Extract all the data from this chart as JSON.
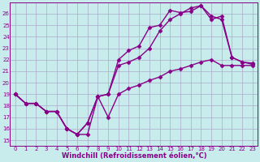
{
  "xlabel": "Windchill (Refroidissement éolien,°C)",
  "background_color": "#c8ecec",
  "grid_color": "#aaaacc",
  "line_color": "#880088",
  "xlim": [
    -0.5,
    23.5
  ],
  "ylim": [
    14.5,
    27
  ],
  "yticks": [
    15,
    16,
    17,
    18,
    19,
    20,
    21,
    22,
    23,
    24,
    25,
    26
  ],
  "xticks": [
    0,
    1,
    2,
    3,
    4,
    5,
    6,
    7,
    8,
    9,
    10,
    11,
    12,
    13,
    14,
    15,
    16,
    17,
    18,
    19,
    20,
    21,
    22,
    23
  ],
  "line1_x": [
    0,
    1,
    2,
    3,
    4,
    5,
    6,
    7,
    8,
    9,
    10,
    11,
    12,
    13,
    14,
    15,
    16,
    17,
    18,
    19,
    20,
    21,
    22,
    23
  ],
  "line1_y": [
    19.0,
    18.2,
    18.2,
    17.5,
    17.5,
    16.0,
    15.5,
    15.5,
    18.8,
    17.0,
    19.0,
    19.5,
    19.8,
    20.2,
    20.5,
    21.0,
    21.2,
    21.5,
    21.8,
    22.0,
    21.5,
    21.5,
    21.5,
    21.5
  ],
  "line2_x": [
    0,
    1,
    2,
    3,
    4,
    5,
    6,
    7,
    8,
    9,
    10,
    11,
    12,
    13,
    14,
    15,
    16,
    17,
    18,
    19,
    20,
    21,
    22,
    23
  ],
  "line2_y": [
    19.0,
    18.2,
    18.2,
    17.5,
    17.5,
    16.0,
    15.5,
    16.5,
    18.8,
    19.0,
    22.0,
    22.8,
    23.2,
    24.8,
    25.0,
    26.3,
    26.1,
    26.2,
    26.7,
    25.5,
    25.8,
    22.2,
    21.8,
    21.7
  ],
  "line3_x": [
    0,
    1,
    2,
    3,
    4,
    5,
    6,
    7,
    8,
    9,
    10,
    11,
    12,
    13,
    14,
    15,
    16,
    17,
    18,
    19,
    20,
    21,
    22,
    23
  ],
  "line3_y": [
    19.0,
    18.2,
    18.2,
    17.5,
    17.5,
    16.0,
    15.5,
    16.5,
    18.8,
    19.0,
    21.5,
    21.8,
    22.2,
    23.0,
    24.5,
    25.5,
    26.0,
    26.5,
    26.7,
    25.8,
    25.5,
    22.2,
    21.8,
    21.6
  ],
  "marker": "D",
  "markersize": 2.5,
  "linewidth": 1.0,
  "tick_fontsize": 5.0,
  "xlabel_fontsize": 6.0
}
